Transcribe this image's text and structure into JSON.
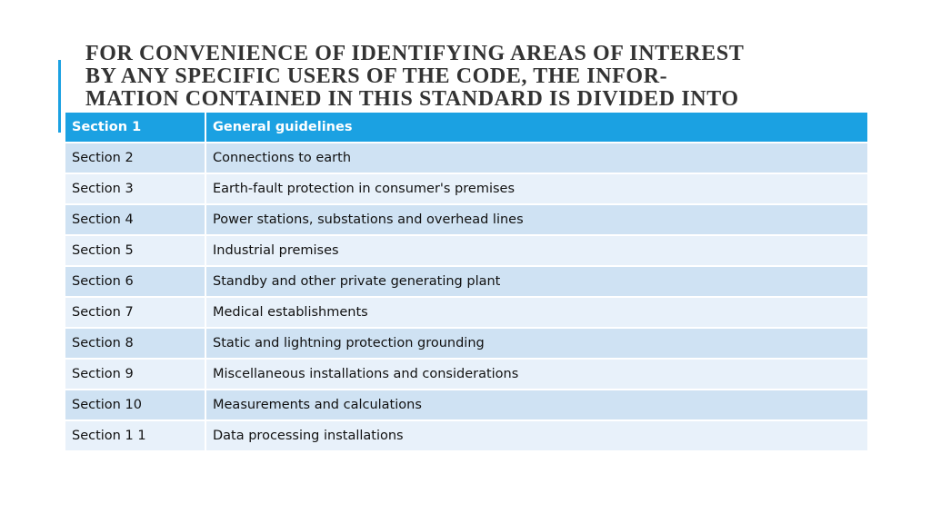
{
  "slide": {
    "title_lines": [
      "FOR CONVENIENCE OF IDENTIFYING AREAS OF INTEREST",
      "BY ANY SPECIFIC USERS OF THE CODE, THE INFOR-",
      "MATION CONTAINED IN THIS STANDARD IS DIVIDED INTO"
    ],
    "accent_color": "#1ba1e2"
  },
  "table": {
    "header": {
      "col1": "Section 1",
      "col2": "General guidelines"
    },
    "rows": [
      {
        "col1": "Section 2",
        "col2": "Connections to earth"
      },
      {
        "col1": "Section 3",
        "col2": "Earth-fault protection in consumer's premises"
      },
      {
        "col1": "Section 4",
        "col2": "Power stations, substations and overhead lines"
      },
      {
        "col1": "Section 5",
        "col2": "Industrial premises"
      },
      {
        "col1": "Section 6",
        "col2": "Standby and other private generating plant"
      },
      {
        "col1": "Section 7",
        "col2": "Medical establishments"
      },
      {
        "col1": "Section 8",
        "col2": "Static and lightning protection grounding"
      },
      {
        "col1": "Section 9",
        "col2": "Miscellaneous installations and considerations"
      },
      {
        "col1": "Section 10",
        "col2": "Measurements and calculations"
      },
      {
        "col1": "Section 1 1",
        "col2": "Data processing installations"
      }
    ],
    "header_color": "#1ba1e2",
    "row_color_dark": "#cfe2f3",
    "row_color_light": "#e8f1fa"
  }
}
